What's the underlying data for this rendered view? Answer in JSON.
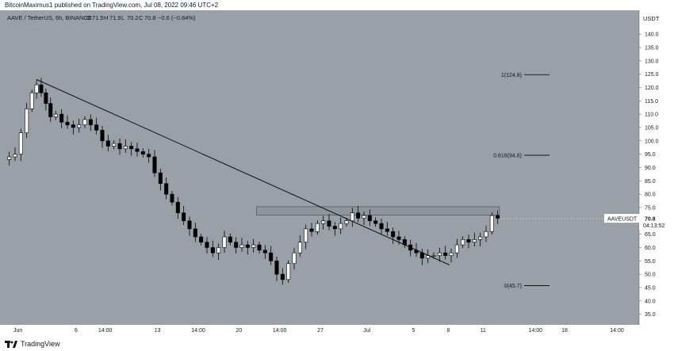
{
  "header": {
    "publish_line": "BitcoinMaximus1 published on TradingView.com, Jul 08, 2022 09:46 UTC+2"
  },
  "footer": {
    "brand": "TradingView"
  },
  "colors": {
    "background": "#9aa0a7",
    "candle": "#ffffff",
    "wick": "#000000",
    "trendline": "#000000",
    "resistance_zone": "#8e949b"
  },
  "chart_data": {
    "type": "candlestick",
    "title": "AAVE / TetherUS, 6h, BINANCE",
    "ohlc_readout": {
      "o_label": "O",
      "o": "71.5",
      "h_label": "H",
      "h": "71.9",
      "l_label": "L",
      "l": "70.2",
      "c_label": "C",
      "c": "70.8",
      "change": "−0.6 (−0.84%)"
    },
    "currency_label": "USDT",
    "price_axis": {
      "ylim": [
        32.5,
        143
      ],
      "tick_labels": [
        "140.0",
        "135.0",
        "130.0",
        "125.0",
        "120.0",
        "115.0",
        "110.0",
        "105.0",
        "100.0",
        "95.0",
        "90.0",
        "85.0",
        "80.0",
        "75.0",
        "70.0",
        "65.0",
        "60.0",
        "55.0",
        "50.0",
        "45.0",
        "40.0",
        "35.0"
      ]
    },
    "time_axis": {
      "tick_labels": [
        {
          "t": 1,
          "label": "Jun"
        },
        {
          "t": 6,
          "label": "6"
        },
        {
          "t": 8.5,
          "label": "14:00"
        },
        {
          "t": 13,
          "label": "13"
        },
        {
          "t": 16.5,
          "label": "14:00"
        },
        {
          "t": 20,
          "label": "20"
        },
        {
          "t": 23.5,
          "label": "14:00"
        },
        {
          "t": 27,
          "label": "27"
        },
        {
          "t": 31,
          "label": "Jul"
        },
        {
          "t": 35,
          "label": "5"
        },
        {
          "t": 38,
          "label": "8"
        },
        {
          "t": 41,
          "label": "11"
        },
        {
          "t": 45.5,
          "label": "14:00"
        },
        {
          "t": 48,
          "label": "18"
        },
        {
          "t": 52.5,
          "label": "14:00"
        }
      ]
    },
    "fib_levels": [
      {
        "label": "1(124.8)",
        "value": 124.8
      },
      {
        "label": "0.618(94.6)",
        "value": 94.6
      },
      {
        "label": "0(45.7)",
        "value": 45.7
      }
    ],
    "trendline": {
      "from": [
        2.6,
        123.0
      ],
      "to": [
        38.1,
        53.5
      ]
    },
    "resistance_zone": {
      "x_from": 21.5,
      "x_to": 42.4,
      "y_from": 72.2,
      "y_to": 75.3
    },
    "last_price": {
      "symbol": "AAVEUSDT",
      "value": "70.8",
      "countdown": "04:13:52"
    },
    "price_path": [
      [
        0,
        93
      ],
      [
        0.5,
        94
      ],
      [
        1,
        95
      ],
      [
        1.5,
        103
      ],
      [
        2,
        112
      ],
      [
        2.4,
        118
      ],
      [
        2.8,
        121
      ],
      [
        3.2,
        118
      ],
      [
        3.6,
        114
      ],
      [
        4,
        109
      ],
      [
        4.5,
        110
      ],
      [
        5,
        107
      ],
      [
        5.5,
        106
      ],
      [
        6,
        105
      ],
      [
        6.5,
        106
      ],
      [
        7,
        108
      ],
      [
        7.5,
        106
      ],
      [
        8,
        104
      ],
      [
        8.5,
        100
      ],
      [
        9,
        98
      ],
      [
        9.5,
        99
      ],
      [
        10,
        97
      ],
      [
        10.5,
        98
      ],
      [
        11,
        97
      ],
      [
        11.5,
        96
      ],
      [
        12,
        95
      ],
      [
        12.5,
        94
      ],
      [
        13,
        88
      ],
      [
        13.5,
        84
      ],
      [
        14,
        80
      ],
      [
        14.5,
        77
      ],
      [
        15,
        73
      ],
      [
        15.5,
        70
      ],
      [
        16,
        67
      ],
      [
        16.5,
        64
      ],
      [
        17,
        62
      ],
      [
        17.5,
        60
      ],
      [
        18,
        58
      ],
      [
        18.5,
        60
      ],
      [
        19,
        64
      ],
      [
        19.5,
        62
      ],
      [
        20,
        60
      ],
      [
        20.5,
        61
      ],
      [
        21,
        60
      ],
      [
        21.5,
        61
      ],
      [
        22,
        59
      ],
      [
        22.5,
        58
      ],
      [
        23,
        55
      ],
      [
        23.5,
        50
      ],
      [
        24,
        48
      ],
      [
        24.5,
        54
      ],
      [
        25,
        58
      ],
      [
        25.5,
        62
      ],
      [
        26,
        67
      ],
      [
        26.5,
        66
      ],
      [
        27,
        69
      ],
      [
        27.5,
        70
      ],
      [
        28,
        68
      ],
      [
        28.5,
        67
      ],
      [
        29,
        69
      ],
      [
        29.5,
        70
      ],
      [
        30,
        73
      ],
      [
        30.5,
        71
      ],
      [
        31,
        72
      ],
      [
        31.5,
        70
      ],
      [
        32,
        69
      ],
      [
        32.5,
        67
      ],
      [
        33,
        66
      ],
      [
        33.5,
        64
      ],
      [
        34,
        63
      ],
      [
        34.5,
        61
      ],
      [
        35,
        59
      ],
      [
        35.5,
        58
      ],
      [
        36,
        56
      ],
      [
        36.5,
        57
      ],
      [
        37,
        57
      ],
      [
        37.5,
        58
      ],
      [
        38,
        57
      ],
      [
        38.5,
        58
      ],
      [
        39,
        61
      ],
      [
        39.5,
        63
      ],
      [
        40,
        62
      ],
      [
        40.5,
        63
      ],
      [
        41,
        64
      ],
      [
        41.5,
        66
      ],
      [
        42,
        72
      ],
      [
        42.5,
        71
      ]
    ]
  }
}
